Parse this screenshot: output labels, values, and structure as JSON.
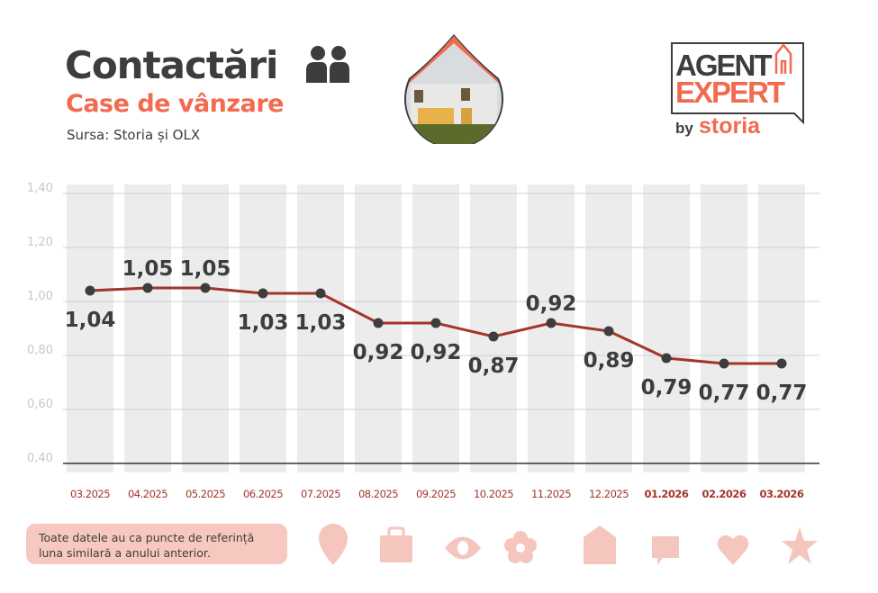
{
  "header": {
    "title": "Contactări",
    "subtitle": "Case de vânzare",
    "source": "Sursa: Storia și OLX"
  },
  "logo": {
    "line1": "AGENT",
    "line2": "EXPERT",
    "by": "by",
    "brand": "storia"
  },
  "note": {
    "line1": "Toate datele au ca puncte de referință",
    "line2": "luna similară a anului anterior."
  },
  "colors": {
    "line": "#a3352b",
    "dot": "#3d3d3d",
    "accent": "#f26a50",
    "column": "#ececec",
    "icon": "#f5c6bd"
  },
  "icons": [
    "pin-icon",
    "briefcase-icon",
    "eye-icon",
    "flower-icon",
    "house-icon",
    "chat-icon",
    "heart-icon",
    "star-icon"
  ],
  "chart_data": {
    "type": "line",
    "title": "Contactări - Case de vânzare",
    "categories": [
      "03.2025",
      "04.2025",
      "05.2025",
      "06.2025",
      "07.2025",
      "08.2025",
      "09.2025",
      "10.2025",
      "11.2025",
      "12.2025",
      "01.2026",
      "02.2026",
      "03.2026"
    ],
    "bold_categories": [
      "01.2026",
      "02.2026",
      "03.2026"
    ],
    "values": [
      1.04,
      1.05,
      1.05,
      1.03,
      1.03,
      0.92,
      0.92,
      0.87,
      0.92,
      0.89,
      0.79,
      0.77,
      0.77
    ],
    "value_labels": [
      "1,04",
      "1,05",
      "1,05",
      "1,03",
      "1,03",
      "0,92",
      "0,92",
      "0,87",
      "0,92",
      "0,89",
      "0,79",
      "0,77",
      "0,77"
    ],
    "yticks": [
      "1,40",
      "1,20",
      "1,00",
      "0,80",
      "0,60",
      "0,40"
    ],
    "ytick_values": [
      1.4,
      1.2,
      1.0,
      0.8,
      0.6,
      0.4
    ],
    "ylim": [
      0.4,
      1.4
    ],
    "grid": true,
    "xlabel": "",
    "ylabel": ""
  }
}
